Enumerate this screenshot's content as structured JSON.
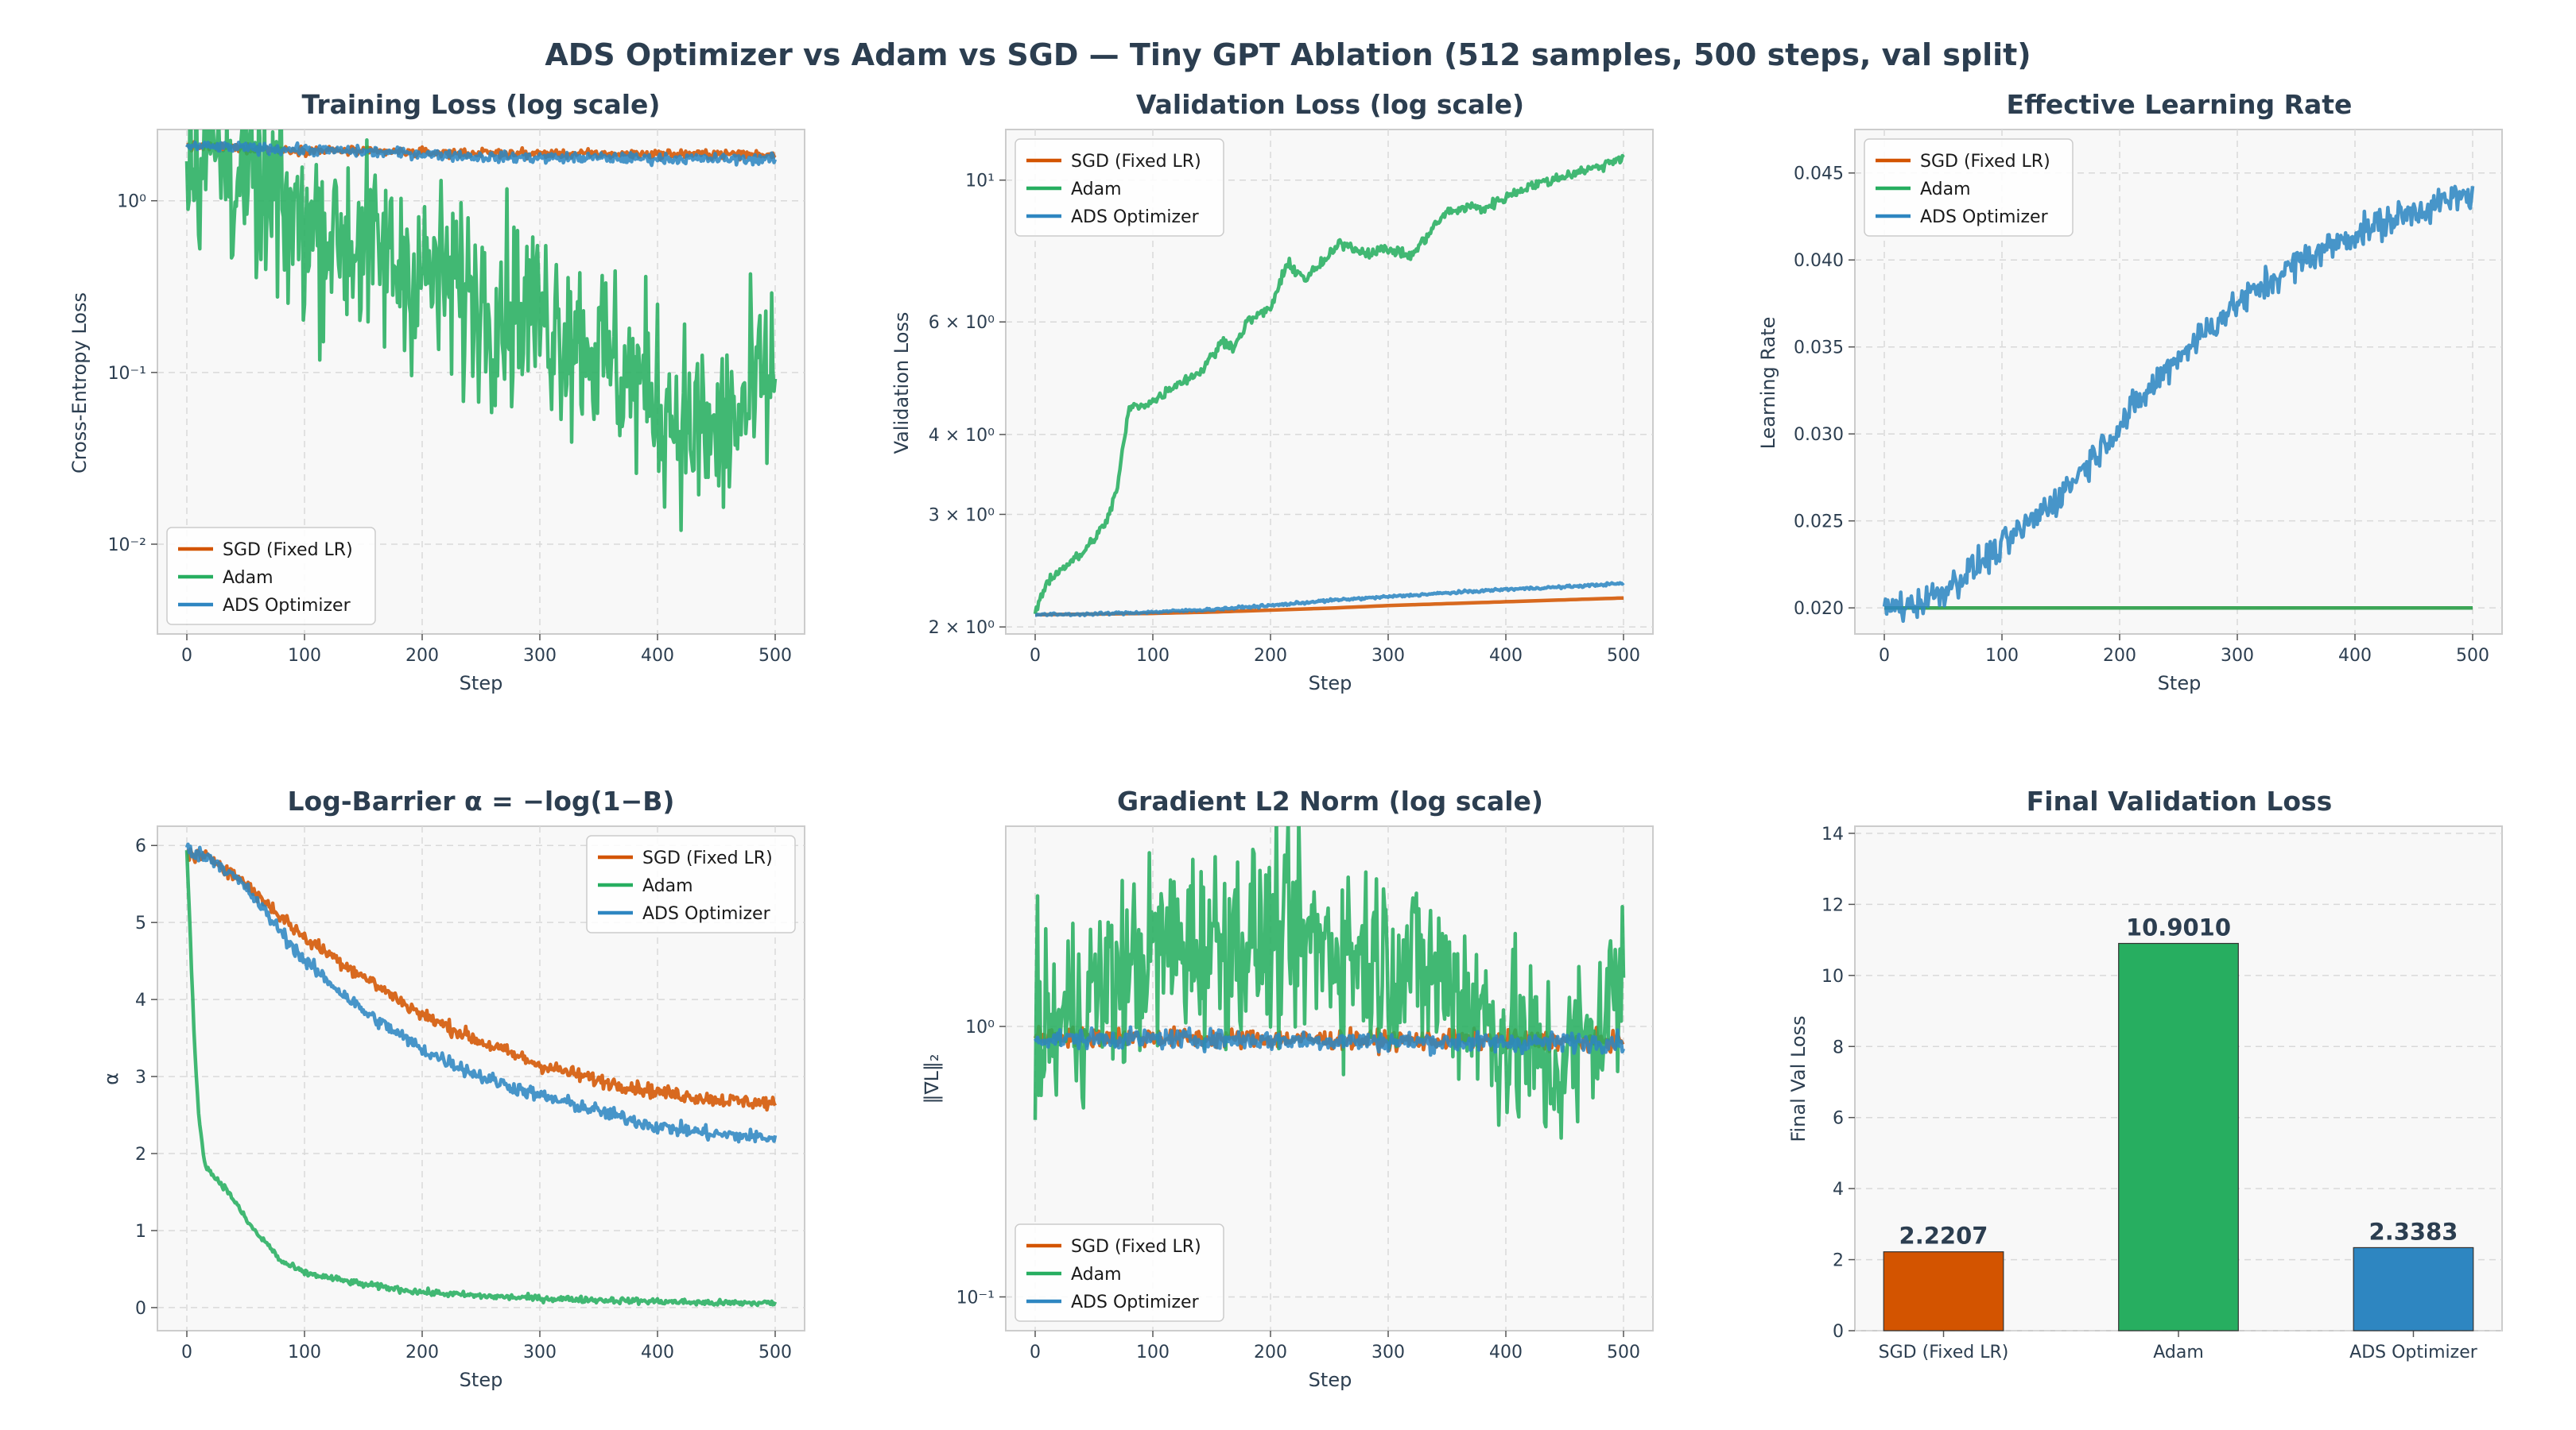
{
  "figure": {
    "suptitle": "ADS Optimizer vs Adam vs SGD  —  Tiny GPT Ablation  (512 samples, 500 steps, val split)"
  },
  "colors": {
    "sgd": "#d35400",
    "adam": "#27ae60",
    "ads": "#2e86c1"
  },
  "chart_data": [
    {
      "id": "train",
      "type": "line",
      "title": "Training Loss (log scale)",
      "xlabel": "Step",
      "ylabel": "Cross-Entropy Loss",
      "yscale": "log",
      "xlim": [
        -25,
        525
      ],
      "ylim": [
        0.003,
        2.6
      ],
      "xticks": [
        0,
        100,
        200,
        300,
        400,
        500
      ],
      "xtick_labels": [
        "0",
        "100",
        "200",
        "300",
        "400",
        "500"
      ],
      "yticks": [
        0.01,
        0.1,
        1
      ],
      "ytick_labels": [
        "10⁻²",
        "10⁻¹",
        "10⁰"
      ],
      "grid": true,
      "legend": "lower-left",
      "series": [
        {
          "name": "SGD (Fixed LR)",
          "color": "sgd",
          "x": [
            0,
            50,
            100,
            150,
            200,
            250,
            300,
            350,
            400,
            450,
            500
          ],
          "y": [
            2.08,
            2.02,
            1.97,
            1.94,
            1.91,
            1.89,
            1.88,
            1.87,
            1.87,
            1.87,
            1.86
          ]
        },
        {
          "name": "Adam",
          "color": "adam",
          "x": [
            0,
            25,
            50,
            75,
            100,
            125,
            150,
            175,
            200,
            225,
            250,
            275,
            300,
            325,
            350,
            375,
            400,
            425,
            450,
            475,
            500
          ],
          "y": [
            2.08,
            1.8,
            1.2,
            0.9,
            0.75,
            0.62,
            0.55,
            0.45,
            0.38,
            0.32,
            0.27,
            0.25,
            0.22,
            0.18,
            0.13,
            0.095,
            0.07,
            0.05,
            0.04,
            0.06,
            0.1
          ]
        },
        {
          "name": "ADS Optimizer",
          "color": "ads",
          "x": [
            0,
            50,
            100,
            150,
            200,
            250,
            300,
            350,
            400,
            450,
            500
          ],
          "y": [
            2.08,
            2.03,
            1.98,
            1.93,
            1.88,
            1.8,
            1.78,
            1.78,
            1.76,
            1.75,
            1.75
          ]
        }
      ]
    },
    {
      "id": "val",
      "type": "line",
      "title": "Validation Loss (log scale)",
      "xlabel": "Step",
      "ylabel": "Validation Loss",
      "yscale": "log",
      "xlim": [
        -25,
        525
      ],
      "ylim": [
        1.95,
        12.0
      ],
      "xticks": [
        0,
        100,
        200,
        300,
        400,
        500
      ],
      "xtick_labels": [
        "0",
        "100",
        "200",
        "300",
        "400",
        "500"
      ],
      "yticks": [
        2,
        3,
        4,
        6,
        10
      ],
      "ytick_labels": [
        "2 × 10⁰",
        "3 × 10⁰",
        "4 × 10⁰",
        "6 × 10⁰",
        "10¹"
      ],
      "grid": true,
      "legend": "upper-left",
      "series": [
        {
          "name": "SGD (Fixed LR)",
          "color": "sgd",
          "x": [
            0,
            50,
            100,
            150,
            200,
            250,
            300,
            350,
            400,
            450,
            500
          ],
          "y": [
            2.09,
            2.095,
            2.1,
            2.11,
            2.125,
            2.14,
            2.16,
            2.175,
            2.19,
            2.205,
            2.22
          ]
        },
        {
          "name": "Adam",
          "color": "adam",
          "x": [
            0,
            10,
            20,
            40,
            50,
            60,
            70,
            80,
            90,
            100,
            120,
            140,
            160,
            170,
            180,
            200,
            215,
            230,
            250,
            260,
            280,
            300,
            320,
            340,
            350,
            370,
            380,
            400,
            420,
            440,
            460,
            480,
            500
          ],
          "y": [
            2.1,
            2.35,
            2.45,
            2.6,
            2.75,
            2.9,
            3.3,
            4.4,
            4.45,
            4.5,
            4.8,
            5.0,
            5.6,
            5.5,
            6.0,
            6.3,
            7.4,
            7.0,
            7.6,
            8.0,
            7.7,
            7.8,
            7.6,
            8.5,
            8.9,
            9.1,
            9.0,
            9.4,
            9.8,
            10.0,
            10.3,
            10.5,
            10.9
          ]
        },
        {
          "name": "ADS Optimizer",
          "color": "ads",
          "x": [
            0,
            50,
            100,
            150,
            200,
            250,
            300,
            350,
            400,
            450,
            500
          ],
          "y": [
            2.09,
            2.095,
            2.11,
            2.13,
            2.16,
            2.2,
            2.23,
            2.26,
            2.29,
            2.31,
            2.34
          ]
        }
      ]
    },
    {
      "id": "lr",
      "type": "line",
      "title": "Effective Learning Rate",
      "xlabel": "Step",
      "ylabel": "Learning Rate",
      "yscale": "linear",
      "xlim": [
        -25,
        525
      ],
      "ylim": [
        0.0185,
        0.0475
      ],
      "xticks": [
        0,
        100,
        200,
        300,
        400,
        500
      ],
      "xtick_labels": [
        "0",
        "100",
        "200",
        "300",
        "400",
        "500"
      ],
      "yticks": [
        0.02,
        0.025,
        0.03,
        0.035,
        0.04,
        0.045
      ],
      "ytick_labels": [
        "0.020",
        "0.025",
        "0.030",
        "0.035",
        "0.040",
        "0.045"
      ],
      "grid": true,
      "legend": "upper-left",
      "series": [
        {
          "name": "SGD (Fixed LR)",
          "color": "sgd",
          "x": [
            0,
            500
          ],
          "y": [
            0.02,
            0.02
          ]
        },
        {
          "name": "Adam",
          "color": "adam",
          "x": [
            0,
            500
          ],
          "y": [
            0.02,
            0.02
          ]
        },
        {
          "name": "ADS Optimizer",
          "color": "ads",
          "x": [
            0,
            25,
            50,
            100,
            150,
            200,
            250,
            300,
            350,
            400,
            450,
            500
          ],
          "y": [
            0.02,
            0.0202,
            0.021,
            0.0235,
            0.0265,
            0.0305,
            0.0345,
            0.0375,
            0.0398,
            0.0415,
            0.0428,
            0.0438
          ]
        }
      ]
    },
    {
      "id": "alpha",
      "type": "line",
      "title": "Log-Barrier  α = −log(1−B)",
      "xlabel": "Step",
      "ylabel": "α",
      "yscale": "linear",
      "xlim": [
        -25,
        525
      ],
      "ylim": [
        -0.3,
        6.25
      ],
      "xticks": [
        0,
        100,
        200,
        300,
        400,
        500
      ],
      "xtick_labels": [
        "0",
        "100",
        "200",
        "300",
        "400",
        "500"
      ],
      "yticks": [
        0,
        1,
        2,
        3,
        4,
        5,
        6
      ],
      "ytick_labels": [
        "0",
        "1",
        "2",
        "3",
        "4",
        "5",
        "6"
      ],
      "grid": true,
      "legend": "upper-right",
      "series": [
        {
          "name": "SGD (Fixed LR)",
          "color": "sgd",
          "x": [
            0,
            25,
            50,
            100,
            150,
            200,
            250,
            300,
            350,
            400,
            450,
            500
          ],
          "y": [
            5.9,
            5.8,
            5.5,
            4.8,
            4.3,
            3.8,
            3.45,
            3.15,
            2.95,
            2.8,
            2.7,
            2.65
          ]
        },
        {
          "name": "Adam",
          "color": "adam",
          "x": [
            0,
            3,
            6,
            10,
            15,
            20,
            30,
            40,
            50,
            60,
            70,
            80,
            100,
            150,
            200,
            250,
            300,
            350,
            400,
            450,
            500
          ],
          "y": [
            5.9,
            4.8,
            3.6,
            2.5,
            1.9,
            1.75,
            1.6,
            1.4,
            1.15,
            0.95,
            0.8,
            0.6,
            0.45,
            0.3,
            0.2,
            0.15,
            0.12,
            0.1,
            0.08,
            0.06,
            0.06
          ]
        },
        {
          "name": "ADS Optimizer",
          "color": "ads",
          "x": [
            0,
            25,
            50,
            100,
            150,
            200,
            250,
            300,
            350,
            400,
            450,
            500
          ],
          "y": [
            5.95,
            5.8,
            5.45,
            4.5,
            3.85,
            3.35,
            3.0,
            2.75,
            2.55,
            2.35,
            2.25,
            2.2
          ]
        }
      ]
    },
    {
      "id": "grad",
      "type": "line",
      "title": "Gradient L2 Norm (log scale)",
      "xlabel": "Step",
      "ylabel": "‖∇L‖₂",
      "yscale": "log",
      "xlim": [
        -25,
        525
      ],
      "ylim": [
        0.075,
        5.5
      ],
      "xticks": [
        0,
        100,
        200,
        300,
        400,
        500
      ],
      "xtick_labels": [
        "0",
        "100",
        "200",
        "300",
        "400",
        "500"
      ],
      "yticks": [
        0.1,
        1
      ],
      "ytick_labels": [
        "10⁻¹",
        "10⁰"
      ],
      "grid": true,
      "legend": "lower-left",
      "series": [
        {
          "name": "SGD (Fixed LR)",
          "color": "sgd",
          "x": [
            0,
            100,
            200,
            300,
            400,
            500
          ],
          "y": [
            0.92,
            0.91,
            0.9,
            0.89,
            0.89,
            0.88
          ]
        },
        {
          "name": "Adam",
          "color": "adam",
          "x": [
            0,
            20,
            40,
            60,
            80,
            100,
            130,
            160,
            200,
            250,
            300,
            330,
            360,
            380,
            400,
            420,
            440,
            460,
            480,
            500
          ],
          "y": [
            0.9,
            1.0,
            1.2,
            1.4,
            1.6,
            1.9,
            2.0,
            2.1,
            2.1,
            2.0,
            1.8,
            1.6,
            1.4,
            1.1,
            0.9,
            0.8,
            0.7,
            0.8,
            1.0,
            1.5
          ]
        },
        {
          "name": "ADS Optimizer",
          "color": "ads",
          "x": [
            0,
            100,
            200,
            300,
            400,
            500
          ],
          "y": [
            0.9,
            0.9,
            0.89,
            0.88,
            0.87,
            0.88
          ]
        }
      ]
    },
    {
      "id": "final",
      "type": "bar",
      "title": "Final Validation Loss",
      "xlabel": "",
      "ylabel": "Final Val Loss",
      "ylim": [
        0,
        14.2
      ],
      "yticks": [
        0,
        2,
        4,
        6,
        8,
        10,
        12,
        14
      ],
      "ytick_labels": [
        "0",
        "2",
        "4",
        "6",
        "8",
        "10",
        "12",
        "14"
      ],
      "grid": true,
      "categories": [
        "SGD (Fixed LR)",
        "Adam",
        "ADS Optimizer"
      ],
      "values": [
        2.2207,
        10.901,
        2.3383
      ],
      "value_labels": [
        "2.2207",
        "10.9010",
        "2.3383"
      ],
      "bar_colors": [
        "sgd",
        "adam",
        "ads"
      ]
    }
  ]
}
